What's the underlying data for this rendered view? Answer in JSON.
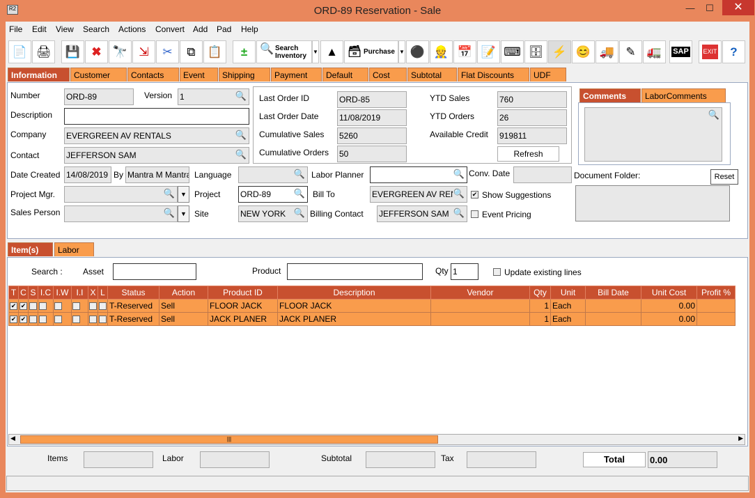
{
  "window": {
    "title": "ORD-89 Reservation - Sale",
    "app_icon": "R2"
  },
  "menu": [
    "File",
    "Edit",
    "View",
    "Search",
    "Actions",
    "Convert",
    "Add",
    "Pad",
    "Help"
  ],
  "toolbar": {
    "search_inventory": "Search Inventory",
    "purchase": "Purchase",
    "sap": "SAP",
    "exit": "EXIT"
  },
  "tabs": [
    "Information",
    "Customer",
    "Contacts",
    "Event",
    "Shipping",
    "Payment",
    "Default",
    "Cost",
    "Subtotal",
    "Flat Discounts",
    "UDF"
  ],
  "info": {
    "number_label": "Number",
    "number": "ORD-89",
    "version_label": "Version",
    "version": "1",
    "description_label": "Description",
    "description": "",
    "company_label": "Company",
    "company": "EVERGREEN AV RENTALS",
    "contact_label": "Contact",
    "contact": "JEFFERSON SAM",
    "last_order_id_label": "Last Order ID",
    "last_order_id": "ORD-85",
    "last_order_date_label": "Last Order Date",
    "last_order_date": "11/08/2019",
    "cumulative_sales_label": "Cumulative Sales",
    "cumulative_sales": "5260",
    "cumulative_orders_label": "Cumulative Orders",
    "cumulative_orders": "50",
    "ytd_sales_label": "YTD Sales",
    "ytd_sales": "760",
    "ytd_orders_label": "YTD Orders",
    "ytd_orders": "26",
    "available_credit_label": "Available Credit",
    "available_credit": "919811",
    "refresh": "Refresh",
    "comment_tabs": [
      "Comments",
      "LaborComments"
    ],
    "date_created_label": "Date Created",
    "date_created": "14/08/2019",
    "by_label": "By",
    "by": "Mantra M Mantra",
    "language_label": "Language",
    "language": "",
    "labor_planner_label": "Labor Planner",
    "labor_planner": "",
    "conv_date_label": "Conv. Date",
    "conv_date": "",
    "document_folder_label": "Document Folder:",
    "reset": "Reset",
    "project_mgr_label": "Project Mgr.",
    "project_mgr": "",
    "project_label": "Project",
    "project": "ORD-89",
    "bill_to_label": "Bill To",
    "bill_to": "EVERGREEN AV RENTAL",
    "show_suggestions_label": "Show Suggestions",
    "show_suggestions": true,
    "sales_person_label": "Sales Person",
    "sales_person": "",
    "site_label": "Site",
    "site": "NEW YORK",
    "billing_contact_label": "Billing Contact",
    "billing_contact": "JEFFERSON SAM",
    "event_pricing_label": "Event Pricing",
    "event_pricing": false
  },
  "item_tabs": [
    "Item(s)",
    "Labor"
  ],
  "search": {
    "search_label": "Search :",
    "asset_label": "Asset",
    "asset": "",
    "product_label": "Product",
    "product": "",
    "qty_label": "Qty",
    "qty": "1",
    "update_label": "Update existing lines"
  },
  "table": {
    "columns": [
      "T",
      "C",
      "S",
      "I.C",
      "I.W",
      "I.I",
      "X",
      "L",
      "Status",
      "Action",
      "Product ID",
      "Description",
      "Vendor",
      "Qty",
      "Unit",
      "Bill Date",
      "Unit Cost",
      "Profit %"
    ],
    "rows": [
      {
        "checks": [
          true,
          true,
          false,
          false,
          false,
          false,
          false,
          false
        ],
        "status": "T-Reserved",
        "action": "Sell",
        "product_id": "FLOOR JACK",
        "description": "FLOOR JACK",
        "vendor": "",
        "qty": "1",
        "unit": "Each",
        "bill_date": "",
        "unit_cost": "0.00",
        "profit": ""
      },
      {
        "checks": [
          true,
          true,
          false,
          false,
          false,
          false,
          false,
          false
        ],
        "status": "T-Reserved",
        "action": "Sell",
        "product_id": "JACK PLANER",
        "description": "JACK PLANER",
        "vendor": "",
        "qty": "1",
        "unit": "Each",
        "bill_date": "",
        "unit_cost": "0.00",
        "profit": ""
      }
    ]
  },
  "footer": {
    "items_label": "Items",
    "items": "",
    "labor_label": "Labor",
    "labor": "",
    "subtotal_label": "Subtotal",
    "subtotal": "",
    "tax_label": "Tax",
    "tax": "",
    "total_label": "Total",
    "total": "0.00"
  },
  "colors": {
    "frame": "#e9875c",
    "tab": "#f99c4c",
    "active_tab": "#c8502f"
  }
}
